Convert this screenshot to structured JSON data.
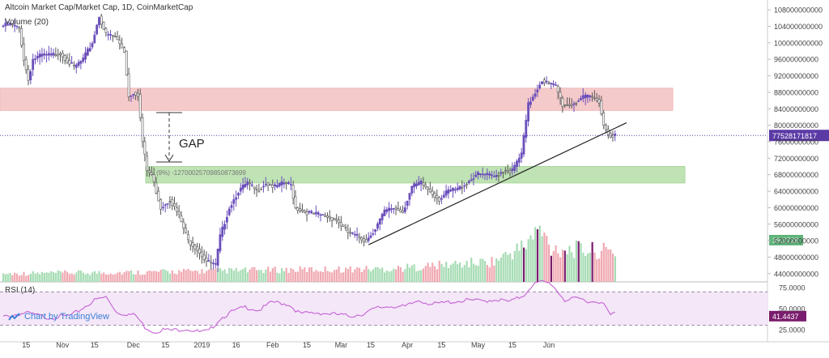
{
  "header": {
    "title": "Altcoin Market Cap/Market Cap, 1D, CoinMarketCap",
    "volume_label": "Volume (20)"
  },
  "annotations": {
    "gap_label": "GAP",
    "measure_label": "(9%) -12700025709850873699"
  },
  "rsi": {
    "label": "RSI (14)",
    "levels": [
      "75.0000",
      "50.0000",
      "25.0000"
    ],
    "current": "41.4437"
  },
  "badges": {
    "price": "77528171817",
    "volume": "39.0728"
  },
  "watermark": {
    "text": "Chart by TradingView",
    "icon": "tradingview-logo-icon"
  },
  "colors": {
    "up": "#6b4fbb",
    "down": "#555555",
    "resistance_zone": "#f2b8b8",
    "support_zone": "#a9d99b",
    "rsi_line": "#c462d4",
    "rsi_band": "#f4e7f8",
    "vol_up": "#a6dcb4",
    "vol_down": "#f0a9b2",
    "vol_purple": "#7b1d6e",
    "price_badge": "#5b3aa6",
    "volume_badge": "#5fb47a",
    "rsi_badge": "#7b1d6e"
  },
  "chart_data": {
    "type": "candlestick",
    "title": "Altcoin Market Cap/Market Cap, 1D, CoinMarketCap",
    "y_ticks": [
      "108000000000",
      "104000000000",
      "100000000000",
      "96000000000",
      "92000000000",
      "88000000000",
      "84000000000",
      "80000000000",
      "76000000000",
      "72000000000",
      "68000000000",
      "64000000000",
      "60000000000",
      "56000000000",
      "52000000000",
      "48000000000",
      "44000000000"
    ],
    "x_ticks": [
      "15",
      "Nov",
      "15",
      "Dec",
      "15",
      "2019",
      "16",
      "Feb",
      "15",
      "Mar",
      "15",
      "Apr",
      "15",
      "May",
      "15",
      "Jun"
    ],
    "ylim": [
      42000000000,
      110000000000
    ],
    "zones": [
      {
        "name": "resistance",
        "from": 83600000000,
        "to": 89000000000
      },
      {
        "name": "support",
        "from": 66000000000,
        "to": 70000000000
      }
    ],
    "trendline": [
      {
        "day": 160,
        "value": 51000000000
      },
      {
        "day": 273,
        "value": 80600000000
      }
    ],
    "current_price": 77528171817,
    "anchors": [
      [
        0,
        104000000000
      ],
      [
        4,
        104500000000
      ],
      [
        8,
        103500000000
      ],
      [
        10,
        96000000000
      ],
      [
        12,
        91000000000
      ],
      [
        14,
        96000000000
      ],
      [
        18,
        97000000000
      ],
      [
        22,
        97000000000
      ],
      [
        26,
        97500000000
      ],
      [
        32,
        94000000000
      ],
      [
        36,
        96000000000
      ],
      [
        40,
        100000000000
      ],
      [
        43,
        106500000000
      ],
      [
        46,
        102000000000
      ],
      [
        50,
        101500000000
      ],
      [
        54,
        98000000000
      ],
      [
        56,
        87000000000
      ],
      [
        58,
        88000000000
      ],
      [
        60,
        87500000000
      ],
      [
        62,
        76000000000
      ],
      [
        64,
        69000000000
      ],
      [
        66,
        68000000000
      ],
      [
        70,
        60000000000
      ],
      [
        74,
        62000000000
      ],
      [
        78,
        58000000000
      ],
      [
        82,
        52000000000
      ],
      [
        86,
        50000000000
      ],
      [
        90,
        47000000000
      ],
      [
        94,
        46000000000
      ],
      [
        96,
        53000000000
      ],
      [
        100,
        60000000000
      ],
      [
        104,
        64000000000
      ],
      [
        108,
        66000000000
      ],
      [
        112,
        64000000000
      ],
      [
        116,
        66000000000
      ],
      [
        120,
        65000000000
      ],
      [
        124,
        66000000000
      ],
      [
        127,
        65500000000
      ],
      [
        129,
        60000000000
      ],
      [
        133,
        59000000000
      ],
      [
        137,
        58500000000
      ],
      [
        142,
        58000000000
      ],
      [
        147,
        57000000000
      ],
      [
        152,
        54000000000
      ],
      [
        156,
        53000000000
      ],
      [
        160,
        52000000000
      ],
      [
        164,
        55000000000
      ],
      [
        168,
        59000000000
      ],
      [
        172,
        60000000000
      ],
      [
        176,
        59000000000
      ],
      [
        180,
        65000000000
      ],
      [
        184,
        66000000000
      ],
      [
        188,
        64000000000
      ],
      [
        192,
        62000000000
      ],
      [
        196,
        64000000000
      ],
      [
        200,
        64500000000
      ],
      [
        204,
        66000000000
      ],
      [
        208,
        68000000000
      ],
      [
        212,
        68000000000
      ],
      [
        216,
        67500000000
      ],
      [
        220,
        69000000000
      ],
      [
        224,
        69000000000
      ],
      [
        228,
        73000000000
      ],
      [
        231,
        85000000000
      ],
      [
        234,
        88000000000
      ],
      [
        237,
        91000000000
      ],
      [
        240,
        90000000000
      ],
      [
        243,
        89500000000
      ],
      [
        246,
        85000000000
      ],
      [
        250,
        85000000000
      ],
      [
        254,
        86500000000
      ],
      [
        258,
        87000000000
      ],
      [
        262,
        86000000000
      ],
      [
        264,
        80000000000
      ],
      [
        266,
        78000000000
      ],
      [
        268,
        77500000000
      ]
    ],
    "volume_range": [
      0,
      2.4
    ],
    "volume_anchors": [
      [
        0,
        0.22
      ],
      [
        60,
        0.26
      ],
      [
        120,
        0.32
      ],
      [
        170,
        0.35
      ],
      [
        215,
        0.55
      ],
      [
        228,
        0.95
      ],
      [
        235,
        1.4
      ],
      [
        240,
        0.9
      ],
      [
        268,
        0.8
      ]
    ],
    "rsi_range": [
      20,
      80
    ],
    "rsi_anchors": [
      [
        0,
        40
      ],
      [
        10,
        45
      ],
      [
        20,
        39
      ],
      [
        30,
        42
      ],
      [
        40,
        60
      ],
      [
        45,
        64
      ],
      [
        50,
        45
      ],
      [
        58,
        42
      ],
      [
        62,
        28
      ],
      [
        66,
        22
      ],
      [
        70,
        25
      ],
      [
        74,
        24
      ],
      [
        80,
        26
      ],
      [
        86,
        22
      ],
      [
        90,
        23
      ],
      [
        95,
        38
      ],
      [
        100,
        46
      ],
      [
        106,
        52
      ],
      [
        112,
        48
      ],
      [
        118,
        58
      ],
      [
        125,
        55
      ],
      [
        130,
        44
      ],
      [
        138,
        45
      ],
      [
        146,
        43
      ],
      [
        152,
        41
      ],
      [
        158,
        44
      ],
      [
        164,
        51
      ],
      [
        170,
        53
      ],
      [
        176,
        52
      ],
      [
        182,
        60
      ],
      [
        188,
        55
      ],
      [
        196,
        58
      ],
      [
        204,
        60
      ],
      [
        210,
        59
      ],
      [
        216,
        61
      ],
      [
        222,
        58
      ],
      [
        228,
        66
      ],
      [
        232,
        79
      ],
      [
        236,
        82
      ],
      [
        240,
        80
      ],
      [
        246,
        60
      ],
      [
        252,
        62
      ],
      [
        258,
        58
      ],
      [
        262,
        59
      ],
      [
        266,
        42
      ],
      [
        268,
        45
      ]
    ]
  }
}
